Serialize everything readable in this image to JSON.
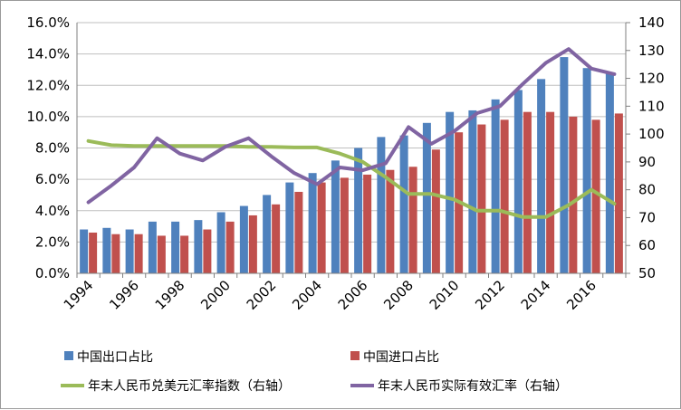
{
  "chart_data": {
    "type": "bar",
    "categories": [
      1994,
      1995,
      1996,
      1997,
      1998,
      1999,
      2000,
      2001,
      2002,
      2003,
      2004,
      2005,
      2006,
      2007,
      2008,
      2009,
      2010,
      2011,
      2012,
      2013,
      2014,
      2015,
      2016,
      2017
    ],
    "x_tick_labels": [
      "1994",
      "1996",
      "1998",
      "2000",
      "2002",
      "2004",
      "2006",
      "2008",
      "2010",
      "2012",
      "2014",
      "2016"
    ],
    "y_left": {
      "min": 0,
      "max": 16,
      "step": 2,
      "tick_labels": [
        "0.0%",
        "2.0%",
        "4.0%",
        "6.0%",
        "8.0%",
        "10.0%",
        "12.0%",
        "14.0%",
        "16.0%"
      ]
    },
    "y_right": {
      "min": 50,
      "max": 140,
      "step": 10,
      "tick_labels": [
        "50",
        "60",
        "70",
        "80",
        "90",
        "100",
        "110",
        "120",
        "130",
        "140"
      ]
    },
    "grid": "horizontal",
    "legend_position": "bottom",
    "series": [
      {
        "name": "中国出口占比",
        "type": "bar",
        "axis": "left",
        "color": "#4f81bd",
        "values": [
          2.8,
          2.9,
          2.8,
          3.3,
          3.3,
          3.4,
          3.9,
          4.3,
          5.0,
          5.8,
          6.4,
          7.2,
          8.0,
          8.7,
          8.8,
          9.6,
          10.3,
          10.4,
          11.1,
          11.7,
          12.4,
          13.8,
          13.1,
          12.8
        ]
      },
      {
        "name": "中国进口占比",
        "type": "bar",
        "axis": "left",
        "color": "#c0504d",
        "values": [
          2.6,
          2.5,
          2.5,
          2.4,
          2.4,
          2.8,
          3.3,
          3.7,
          4.4,
          5.2,
          5.8,
          6.1,
          6.3,
          6.6,
          6.8,
          7.9,
          9.0,
          9.5,
          9.8,
          10.3,
          10.3,
          10.0,
          9.8,
          10.2
        ]
      },
      {
        "name": "年末人民币兑美元汇率指数（右轴）",
        "type": "line",
        "axis": "right",
        "color": "#9bbb59",
        "values": [
          97.5,
          96,
          95.7,
          95.7,
          95.7,
          95.7,
          95.7,
          95.4,
          95.4,
          95.2,
          95.2,
          93,
          90,
          84.5,
          78.5,
          78.5,
          76.5,
          72.5,
          72.5,
          70.2,
          70.2,
          74.5,
          80,
          75
        ]
      },
      {
        "name": "年末人民币实际有效汇率（右轴）",
        "type": "line",
        "axis": "right",
        "color": "#8064a2",
        "values": [
          75.5,
          81.5,
          88,
          98.5,
          93,
          90.5,
          95.5,
          98.5,
          92,
          86,
          82,
          88,
          87,
          89.5,
          102.5,
          96.5,
          101,
          107.5,
          110,
          118,
          125.5,
          130.5,
          123.5,
          121.5
        ]
      }
    ]
  }
}
